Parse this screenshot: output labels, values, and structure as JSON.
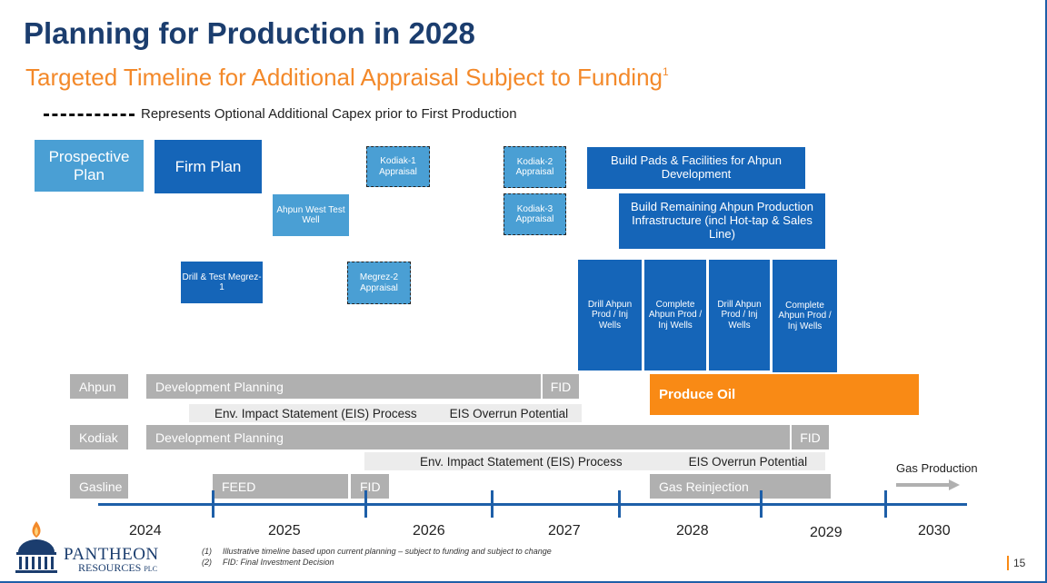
{
  "header": {
    "title": "Planning for Production in 2028",
    "subtitle": "Targeted Timeline for Additional Appraisal Subject to Funding",
    "subtitle_sup": "1",
    "legend_text": "Represents Optional Additional Capex prior to First Production"
  },
  "plan_boxes": {
    "prospective": "Prospective Plan",
    "firm": "Firm Plan",
    "ahpun_west": "Ahpun West Test Well",
    "drill_test_megrez": "Drill & Test Megrez-1",
    "kodiak1": "Kodiak-1 Appraisal",
    "megrez2": "Megrez-2 Appraisal",
    "kodiak2": "Kodiak-2 Appraisal",
    "kodiak3": "Kodiak-3 Appraisal",
    "build_pads": "Build Pads & Facilities for Ahpun Development",
    "build_remaining": "Build Remaining Ahpun Production Infrastructure (incl Hot-tap & Sales Line)",
    "drill_wells_1": "Drill Ahpun Prod / Inj Wells",
    "complete_wells_1": "Complete Ahpun Prod / Inj Wells",
    "drill_wells_2": "Drill Ahpun Prod / Inj Wells",
    "complete_wells_2": "Complete Ahpun Prod / Inj Wells"
  },
  "timeline": {
    "ahpun": {
      "label": "Ahpun",
      "dev_planning": "Development Planning",
      "fid": "FID",
      "produce_oil": "Produce Oil",
      "eis": "Env. Impact Statement (EIS) Process",
      "eis_overrun": "EIS Overrun Potential"
    },
    "kodiak": {
      "label": "Kodiak",
      "dev_planning": "Development Planning",
      "fid": "FID",
      "eis": "Env. Impact Statement (EIS) Process",
      "eis_overrun": "EIS Overrun Potential"
    },
    "gasline": {
      "label": "Gasline",
      "feed": "FEED",
      "fid": "FID",
      "gas_reinjection": "Gas Reinjection",
      "gas_production": "Gas Production"
    },
    "years": [
      "2024",
      "2025",
      "2026",
      "2027",
      "2028",
      "2029",
      "2030"
    ]
  },
  "footer": {
    "company_name": "PANTHEON",
    "company_sub": "RESOURCES",
    "company_plc": "PLC",
    "note1_num": "(1)",
    "note1": "Illustrative timeline based upon current planning – subject to funding and subject to change",
    "note2_num": "(2)",
    "note2": "FID: Final Investment Decision",
    "page_number": "15"
  },
  "colors": {
    "title": "#1b3d6e",
    "subtitle": "#f3892a",
    "dark_blue": "#1565b8",
    "light_blue": "#4a9fd4",
    "grey": "#b0b0b0",
    "orange": "#f98a15"
  }
}
